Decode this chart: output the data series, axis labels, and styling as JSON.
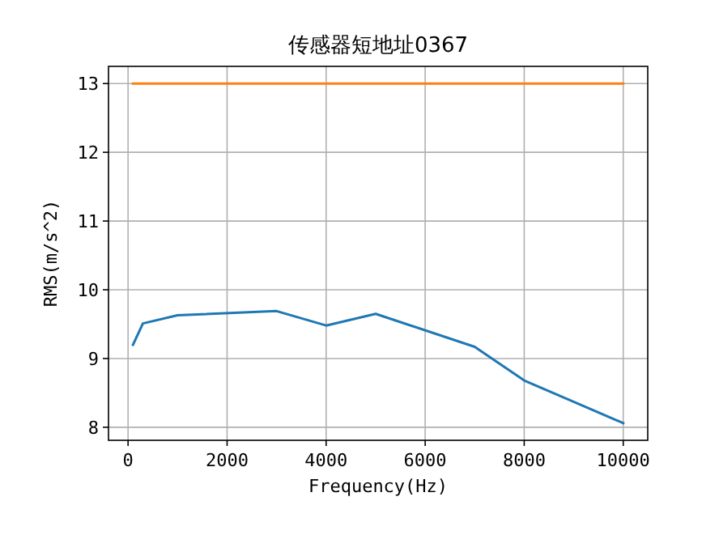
{
  "chart_data": {
    "type": "line",
    "title": "传感器短地址0367",
    "xlabel": "Frequency(Hz)",
    "ylabel": "RMS(m/s^2)",
    "series": [
      {
        "color": "#1f77b4",
        "x": [
          100,
          300,
          1000,
          3000,
          4000,
          5000,
          7000,
          8000,
          10000
        ],
        "values": [
          9.2,
          9.51,
          9.63,
          9.69,
          9.48,
          9.65,
          9.17,
          8.68,
          8.06
        ]
      },
      {
        "color": "#ff7f0e",
        "x": [
          100,
          10000
        ],
        "values": [
          13,
          13
        ]
      }
    ],
    "xlim": [
      -395,
      10495
    ],
    "ylim": [
      7.81,
      13.25
    ],
    "xticks": [
      0,
      2000,
      4000,
      6000,
      8000,
      10000
    ],
    "yticks": [
      8,
      9,
      10,
      11,
      12,
      13
    ],
    "grid": true
  }
}
